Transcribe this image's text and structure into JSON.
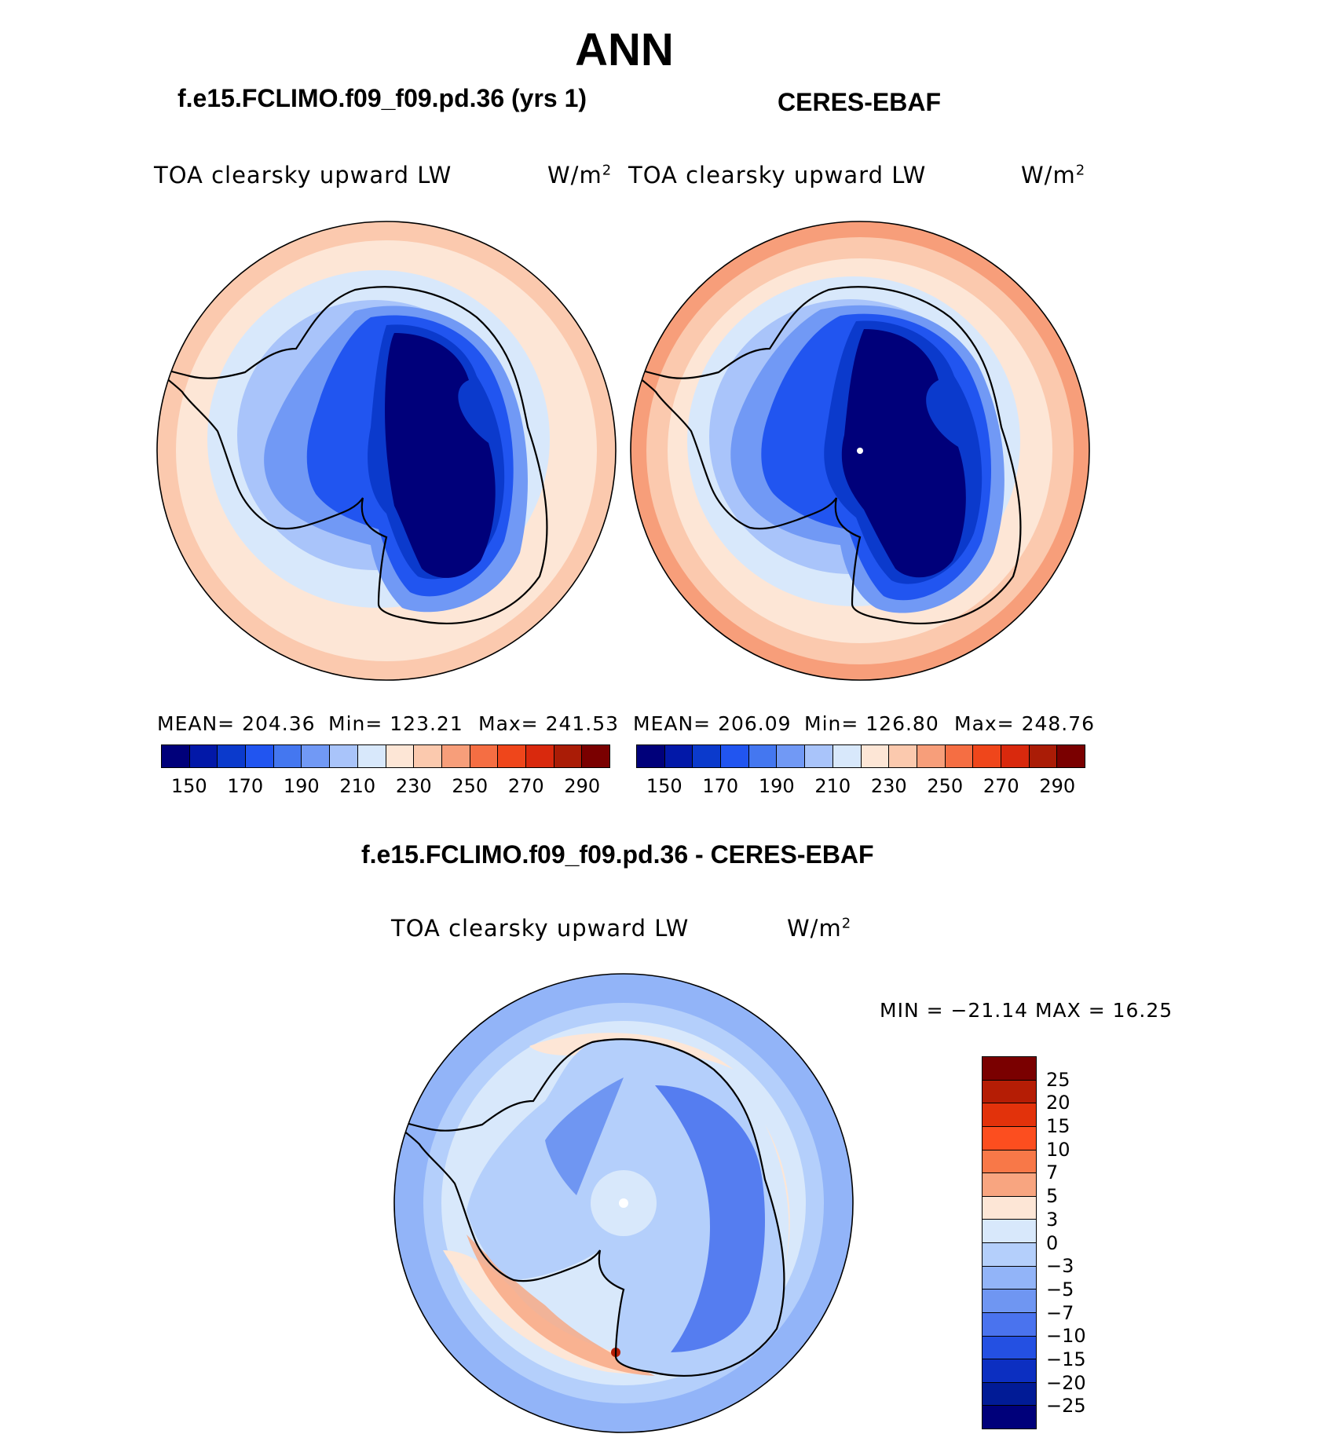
{
  "main_title": "ANN",
  "panels": {
    "model": {
      "title": "f.e15.FCLIMO.f09_f09.pd.36 (yrs 1)",
      "field_label": "TOA clearsky upward LW",
      "units": "W/m",
      "units_sup": "2",
      "stats": {
        "mean": "MEAN= 204.36",
        "min": "Min= 123.21",
        "max": "Max= 241.53"
      }
    },
    "obs": {
      "title": "CERES-EBAF",
      "field_label": "TOA clearsky upward LW",
      "units": "W/m",
      "units_sup": "2",
      "stats": {
        "mean": "MEAN= 206.09",
        "min": "Min= 126.80",
        "max": "Max= 248.76"
      }
    },
    "diff": {
      "title": "f.e15.FCLIMO.f09_f09.pd.36 - CERES-EBAF",
      "field_label": "TOA clearsky upward LW",
      "units": "W/m",
      "units_sup": "2",
      "stats": {
        "minmax": "MIN = −21.14 MAX =  16.25"
      }
    }
  },
  "colorbars": {
    "main": {
      "colors": [
        "#00007a",
        "#0218a8",
        "#0b3acc",
        "#2155f0",
        "#4477f0",
        "#7199f5",
        "#a9c4fa",
        "#d8e8fb",
        "#fde6d6",
        "#fbc9ae",
        "#f79e7a",
        "#f56e43",
        "#ef461b",
        "#d9290d",
        "#aa1c06",
        "#7a0000"
      ],
      "tick_labels": [
        "150",
        "170",
        "190",
        "210",
        "230",
        "250",
        "270",
        "290"
      ]
    },
    "diff": {
      "colors": [
        "#7a0000",
        "#b51d05",
        "#e2320b",
        "#fc4e1f",
        "#f87848",
        "#f8a580",
        "#fde6d6",
        "#d8e8fb",
        "#b4cffb",
        "#92b4f8",
        "#6f96f2",
        "#4a73ee",
        "#2450e2",
        "#0c2fc1",
        "#011b96",
        "#00007a"
      ],
      "tick_labels": [
        "25",
        "20",
        "15",
        "10",
        "7",
        "5",
        "3",
        "0",
        "−3",
        "−5",
        "−7",
        "−10",
        "−15",
        "−20",
        "−25"
      ]
    }
  },
  "chart_data": [
    {
      "type": "heatmap",
      "projection": "south-polar-stereographic",
      "title": "f.e15.FCLIMO.f09_f09.pd.36 (yrs 1)",
      "variable": "TOA clearsky upward LW",
      "units": "W/m2",
      "mean": 204.36,
      "min": 123.21,
      "max": 241.53,
      "contour_levels": [
        140,
        150,
        160,
        170,
        180,
        190,
        200,
        210,
        220,
        230,
        240,
        250,
        260,
        270,
        280,
        290
      ]
    },
    {
      "type": "heatmap",
      "projection": "south-polar-stereographic",
      "title": "CERES-EBAF",
      "variable": "TOA clearsky upward LW",
      "units": "W/m2",
      "mean": 206.09,
      "min": 126.8,
      "max": 248.76,
      "contour_levels": [
        140,
        150,
        160,
        170,
        180,
        190,
        200,
        210,
        220,
        230,
        240,
        250,
        260,
        270,
        280,
        290
      ]
    },
    {
      "type": "heatmap",
      "projection": "south-polar-stereographic",
      "title": "f.e15.FCLIMO.f09_f09.pd.36 - CERES-EBAF",
      "variable": "TOA clearsky upward LW",
      "units": "W/m2",
      "min": -21.14,
      "max": 16.25,
      "contour_levels": [
        -25,
        -20,
        -15,
        -10,
        -7,
        -5,
        -3,
        0,
        3,
        5,
        7,
        10,
        15,
        20,
        25
      ]
    }
  ]
}
